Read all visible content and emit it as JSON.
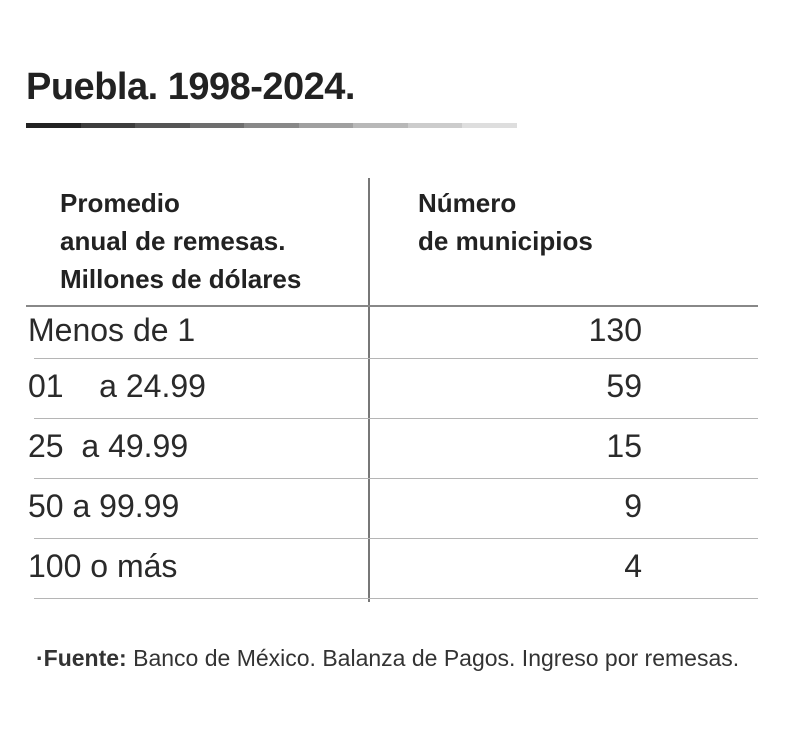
{
  "title": "Puebla. 1998-2024.",
  "title_bar_colors": [
    "#222222",
    "#3d3d3d",
    "#555555",
    "#6e6e6e",
    "#888888",
    "#a0a0a0",
    "#b8b8b8",
    "#cccccc",
    "#dedede"
  ],
  "table": {
    "header_left": [
      "Promedio",
      "anual de remesas.",
      "Millones de dólares"
    ],
    "header_right": [
      "Número",
      "de municipios"
    ],
    "rows": [
      {
        "range": "Menos de 1",
        "count": "130"
      },
      {
        "range": "01    a 24.99",
        "count": "59"
      },
      {
        "range": "25  a 49.99",
        "count": "15"
      },
      {
        "range": "50 a 99.99",
        "count": "9"
      },
      {
        "range": "100 o más",
        "count": "4"
      }
    ]
  },
  "source": {
    "bullet": "·",
    "label": "Fuente:",
    "text": " Banco de México. Balanza de Pagos. Ingreso por remesas."
  }
}
